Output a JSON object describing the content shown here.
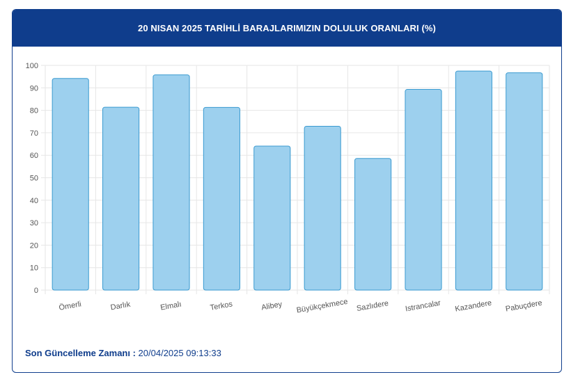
{
  "header": {
    "title": "20 NISAN 2025 TARİHLİ BARAJLARIMIZIN DOLULUK ORANLARI (%)"
  },
  "footer": {
    "label": "Son Güncelleme Zamanı :",
    "value": " 20/04/2025 09:13:33"
  },
  "colors": {
    "header_bg": "#0f3d8c",
    "bar_fill": "#9dd0ee",
    "bar_stroke": "#3a9ad0",
    "grid": "#e6e6e6"
  },
  "chart_data": {
    "type": "bar",
    "title": "20 NISAN 2025 TARİHLİ BARAJLARIMIZIN DOLULUK ORANLARI (%)",
    "xlabel": "",
    "ylabel": "",
    "ylim": [
      0,
      100
    ],
    "yticks": [
      0,
      10,
      20,
      30,
      40,
      50,
      60,
      70,
      80,
      90,
      100
    ],
    "grid": true,
    "categories": [
      "Ömerli",
      "Darlık",
      "Elmalı",
      "Terkos",
      "Alibey",
      "Büyükçekmece",
      "Sazlıdere",
      "Istrancalar",
      "Kazandere",
      "Pabuçdere"
    ],
    "values": [
      94.2,
      81.4,
      95.8,
      81.3,
      64.1,
      72.9,
      58.6,
      89.3,
      97.5,
      96.7
    ]
  }
}
